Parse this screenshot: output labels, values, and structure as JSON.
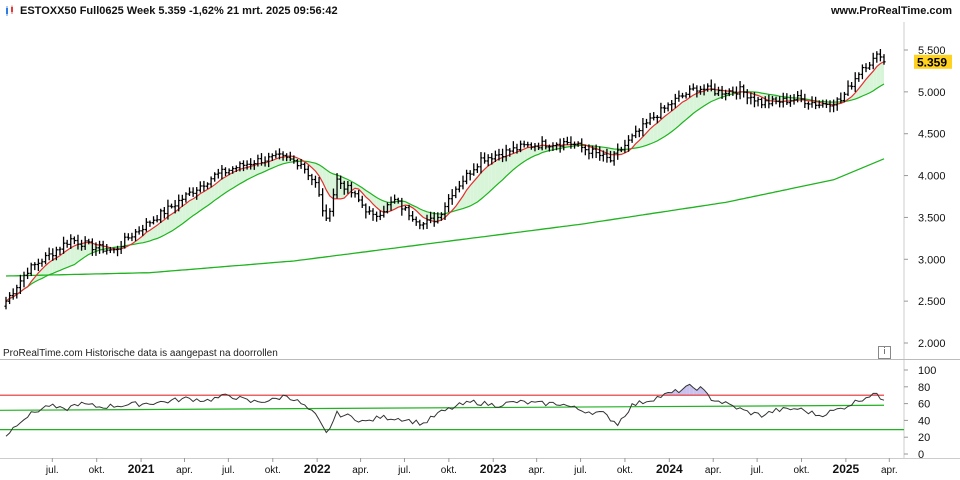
{
  "header": {
    "title": "ESTOXX50 Full0625 Week 5.359 -1,62% 21 mrt. 2025 09:56:42",
    "brand": "www.ProRealTime.com"
  },
  "footer_note": "ProRealTime.com  Historische data is aangepast na doorrollen",
  "info_icon_label": "i",
  "colors": {
    "price": "#000000",
    "ma_red": "#e33030",
    "ma_green": "#1fb31f",
    "cloud_fill": "#d9f5d9",
    "cloud_over": "#c9c2ee",
    "last_price_bg": "#ffd21f",
    "rsi_line": "#333333"
  },
  "chart_data": [
    {
      "type": "line",
      "name": "price-chart",
      "y_ticks": [
        2000,
        2500,
        3000,
        3500,
        4000,
        4500,
        5000,
        5500
      ],
      "y_tick_labels": [
        "2.000",
        "2.500",
        "3.000",
        "3.500",
        "4.000",
        "4.500",
        "5.000",
        "5.500"
      ],
      "ylim": [
        1900,
        5650
      ],
      "last_price_label": "5.359",
      "last_price": 5359,
      "x_start_date": "2020-03-27",
      "x_end_date": "2025-03-21",
      "price_close_anchors": [
        [
          0,
          2500
        ],
        [
          6,
          2870
        ],
        [
          12,
          3050
        ],
        [
          18,
          3240
        ],
        [
          24,
          3150
        ],
        [
          30,
          3100
        ],
        [
          34,
          3260
        ],
        [
          40,
          3450
        ],
        [
          46,
          3630
        ],
        [
          52,
          3820
        ],
        [
          58,
          4000
        ],
        [
          64,
          4100
        ],
        [
          70,
          4180
        ],
        [
          76,
          4220
        ],
        [
          82,
          4150
        ],
        [
          86,
          3900
        ],
        [
          89,
          3450
        ],
        [
          92,
          3950
        ],
        [
          96,
          3800
        ],
        [
          102,
          3500
        ],
        [
          108,
          3700
        ],
        [
          112,
          3550
        ],
        [
          116,
          3420
        ],
        [
          120,
          3500
        ],
        [
          124,
          3800
        ],
        [
          128,
          4000
        ],
        [
          132,
          4200
        ],
        [
          138,
          4270
        ],
        [
          144,
          4350
        ],
        [
          150,
          4380
        ],
        [
          156,
          4400
        ],
        [
          162,
          4300
        ],
        [
          168,
          4180
        ],
        [
          174,
          4450
        ],
        [
          180,
          4700
        ],
        [
          186,
          4900
        ],
        [
          192,
          5050
        ],
        [
          198,
          5000
        ],
        [
          204,
          5020
        ],
        [
          210,
          4870
        ],
        [
          214,
          4880
        ],
        [
          220,
          4920
        ],
        [
          226,
          4850
        ],
        [
          232,
          4900
        ],
        [
          238,
          5300
        ],
        [
          241,
          5380
        ],
        [
          243,
          5459
        ],
        [
          244,
          5359
        ]
      ],
      "sma_long_anchors": [
        [
          0,
          2800
        ],
        [
          40,
          2840
        ],
        [
          80,
          2980
        ],
        [
          120,
          3200
        ],
        [
          160,
          3420
        ],
        [
          200,
          3680
        ],
        [
          230,
          3950
        ],
        [
          244,
          4200
        ]
      ],
      "x_tick_labels": [
        "jul.",
        "okt.",
        "2021",
        "apr.",
        "jul.",
        "okt.",
        "2022",
        "apr.",
        "jul.",
        "okt.",
        "2023",
        "apr.",
        "jul.",
        "okt.",
        "2024",
        "apr.",
        "jul.",
        "okt.",
        "2025",
        "apr."
      ],
      "x_tick_dates": [
        "2020-07-01",
        "2020-10-01",
        "2021-01-01",
        "2021-04-01",
        "2021-07-01",
        "2021-10-01",
        "2022-01-01",
        "2022-04-01",
        "2022-07-01",
        "2022-10-01",
        "2023-01-01",
        "2023-04-01",
        "2023-07-01",
        "2023-10-01",
        "2024-01-01",
        "2024-04-01",
        "2024-07-01",
        "2024-10-01",
        "2025-01-01",
        "2025-04-01"
      ],
      "x_tick_bold": [
        false,
        false,
        true,
        false,
        false,
        false,
        true,
        false,
        false,
        false,
        true,
        false,
        false,
        false,
        true,
        false,
        false,
        false,
        true,
        false
      ]
    },
    {
      "type": "line",
      "name": "rsi-chart",
      "y_ticks": [
        0,
        20,
        40,
        60,
        80,
        100
      ],
      "y_tick_labels": [
        "0",
        "20",
        "40",
        "60",
        "80",
        "100"
      ],
      "ylim": [
        0,
        100
      ],
      "level_upper": 70,
      "level_mid_start": 52,
      "level_mid_end": 58,
      "level_lower": 29,
      "rsi_anchors": [
        [
          0,
          22
        ],
        [
          4,
          40
        ],
        [
          8,
          50
        ],
        [
          12,
          58
        ],
        [
          16,
          52
        ],
        [
          20,
          60
        ],
        [
          26,
          56
        ],
        [
          32,
          58
        ],
        [
          38,
          60
        ],
        [
          44,
          62
        ],
        [
          50,
          66
        ],
        [
          56,
          64
        ],
        [
          62,
          70
        ],
        [
          68,
          62
        ],
        [
          74,
          64
        ],
        [
          78,
          70
        ],
        [
          82,
          60
        ],
        [
          86,
          46
        ],
        [
          89,
          24
        ],
        [
          92,
          48
        ],
        [
          96,
          44
        ],
        [
          100,
          38
        ],
        [
          104,
          44
        ],
        [
          110,
          42
        ],
        [
          116,
          36
        ],
        [
          120,
          48
        ],
        [
          126,
          58
        ],
        [
          130,
          62
        ],
        [
          136,
          58
        ],
        [
          142,
          62
        ],
        [
          148,
          60
        ],
        [
          154,
          60
        ],
        [
          160,
          52
        ],
        [
          166,
          48
        ],
        [
          170,
          36
        ],
        [
          174,
          58
        ],
        [
          180,
          66
        ],
        [
          186,
          74
        ],
        [
          190,
          80
        ],
        [
          193,
          78
        ],
        [
          196,
          66
        ],
        [
          200,
          60
        ],
        [
          206,
          50
        ],
        [
          210,
          46
        ],
        [
          214,
          52
        ],
        [
          220,
          54
        ],
        [
          226,
          46
        ],
        [
          232,
          54
        ],
        [
          238,
          66
        ],
        [
          241,
          72
        ],
        [
          244,
          64
        ]
      ]
    }
  ]
}
